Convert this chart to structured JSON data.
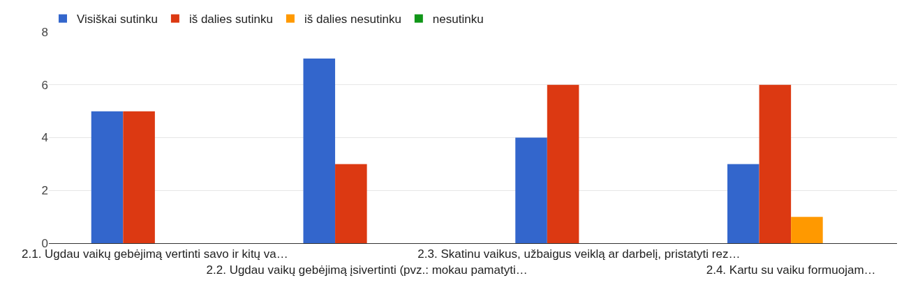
{
  "chart_data": {
    "type": "bar",
    "categories": [
      "2.1. Ugdau vaikų gebėjimą vertinti savo ir kitų va…",
      "2.2. Ugdau vaikų gebėjimą įsivertinti (pvz.: mokau pamatyti…",
      "2.3. Skatinu vaikus, užbaigus veiklą ar darbelį, pristatyti rez…",
      "2.4. Kartu su vaiku formuojam…"
    ],
    "series": [
      {
        "name": "Visiškai sutinku",
        "color": "#3366cc",
        "values": [
          5,
          7,
          4,
          3
        ]
      },
      {
        "name": "iš dalies sutinku",
        "color": "#dc3912",
        "values": [
          5,
          3,
          6,
          6
        ]
      },
      {
        "name": "iš dalies nesutinku",
        "color": "#ff9900",
        "values": [
          0,
          0,
          0,
          1
        ]
      },
      {
        "name": "nesutinku",
        "color": "#109618",
        "values": [
          0,
          0,
          0,
          0
        ]
      }
    ],
    "ylim": [
      0,
      8
    ],
    "yticks": [
      0,
      2,
      4,
      6,
      8
    ],
    "grid": "y",
    "legend": "top left"
  }
}
